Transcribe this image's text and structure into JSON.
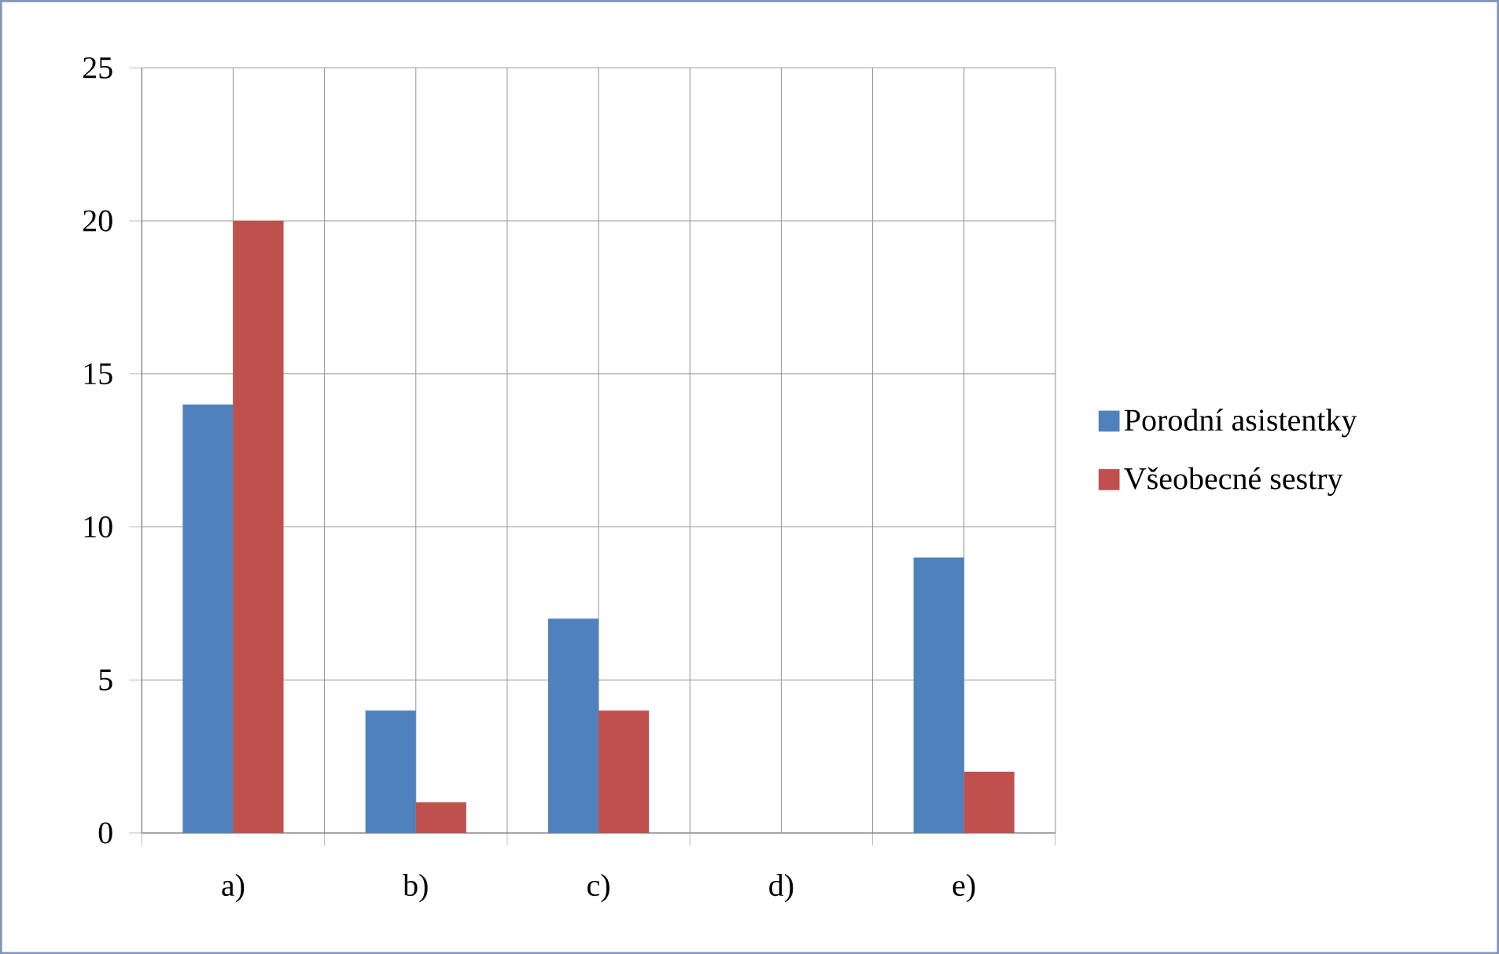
{
  "chart_data": {
    "type": "bar",
    "categories": [
      "a)",
      "b)",
      "c)",
      "d)",
      "e)"
    ],
    "series": [
      {
        "name": "Porodní asistentky",
        "color": "#4f81bd",
        "values": [
          14,
          4,
          7,
          0,
          9
        ]
      },
      {
        "name": "Všeobecné sestry",
        "color": "#c0504d",
        "values": [
          20,
          1,
          4,
          0,
          2
        ]
      }
    ],
    "ylim": [
      0,
      25
    ],
    "yticks": [
      0,
      5,
      10,
      15,
      20,
      25
    ],
    "grid": true,
    "legend": "right"
  }
}
